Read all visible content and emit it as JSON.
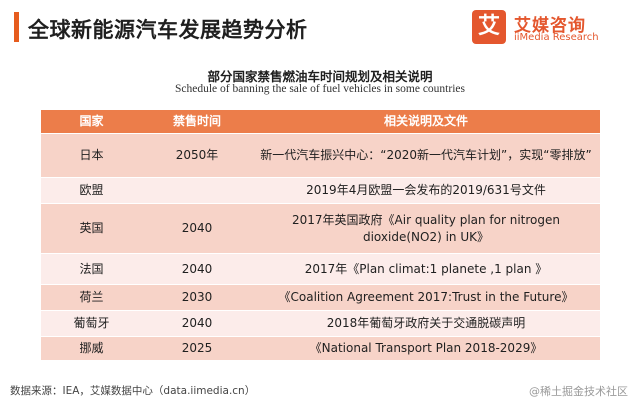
{
  "header": {
    "title": "全球新能源汽车发展趋势分析",
    "accent_color": "#e65c1e"
  },
  "logo": {
    "mark": "艾",
    "name_cn": "艾媒咨询",
    "name_en": "iiMedia Research",
    "color": "#e4572e"
  },
  "table_title": {
    "cn": "部分国家禁售燃油车时间规划及相关说明",
    "en": "Schedule of banning the sale of fuel vehicles in some countries"
  },
  "table": {
    "headers": [
      "国家",
      "禁售时间",
      "相关说明及文件"
    ],
    "header_color": "#ec7d4a",
    "rows": [
      {
        "country": "日本",
        "time": "2050年",
        "note": "新一代汽车振兴中心：“2020新一代汽车计划”，实现“零排放”"
      },
      {
        "country": "欧盟",
        "time": "",
        "note": "2019年4月欧盟一会发布的2019/631号文件"
      },
      {
        "country": "英国",
        "time": "2040",
        "note": "2017年英国政府《Air quality plan for nitrogen dioxide(NO2) in UK》"
      },
      {
        "country": "法国",
        "time": "2040",
        "note": "2017年《Plan climat:1 planete ,1 plan 》"
      },
      {
        "country": "荷兰",
        "time": "2030",
        "note": "《Coalition Agreement 2017:Trust in the Future》"
      },
      {
        "country": "葡萄牙",
        "time": "2040",
        "note": "2018年葡萄牙政府关于交通脱碳声明"
      },
      {
        "country": "挪威",
        "time": "2025",
        "note": "《National Transport Plan 2018-2029》"
      }
    ]
  },
  "footer": {
    "source": "数据来源：IEA，艾媒数据中心（data.iimedia.cn）",
    "watermark": "@稀土掘金技术社区"
  }
}
